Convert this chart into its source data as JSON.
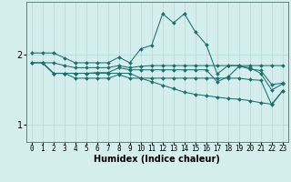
{
  "xlabel": "Humidex (Indice chaleur)",
  "ylabel": "",
  "background_color": "#d4eeed",
  "line_color": "#1a7070",
  "grid_color": "#aed8d5",
  "xlim": [
    -0.5,
    23.5
  ],
  "ylim": [
    0.75,
    2.75
  ],
  "yticks": [
    1,
    2
  ],
  "xticks": [
    0,
    1,
    2,
    3,
    4,
    5,
    6,
    7,
    8,
    9,
    10,
    11,
    12,
    13,
    14,
    15,
    16,
    17,
    18,
    19,
    20,
    21,
    22,
    23
  ],
  "series": [
    {
      "x": [
        0,
        1,
        2,
        3,
        4,
        5,
        6,
        7,
        8,
        9,
        10,
        11,
        12,
        13,
        14,
        15,
        16,
        17,
        18,
        19,
        20,
        21,
        22,
        23
      ],
      "y": [
        2.02,
        2.02,
        2.02,
        1.95,
        1.88,
        1.88,
        1.88,
        1.88,
        1.96,
        1.88,
        2.08,
        2.13,
        2.58,
        2.45,
        2.58,
        2.32,
        2.14,
        1.72,
        1.84,
        1.84,
        1.79,
        1.77,
        1.57,
        1.59
      ]
    },
    {
      "x": [
        0,
        1,
        2,
        3,
        4,
        5,
        6,
        7,
        8,
        9,
        10,
        11,
        12,
        13,
        14,
        15,
        16,
        17,
        18,
        19,
        20,
        21,
        22,
        23
      ],
      "y": [
        1.88,
        1.88,
        1.88,
        1.84,
        1.81,
        1.81,
        1.81,
        1.81,
        1.84,
        1.81,
        1.83,
        1.84,
        1.84,
        1.84,
        1.84,
        1.84,
        1.84,
        1.84,
        1.84,
        1.84,
        1.84,
        1.84,
        1.84,
        1.84
      ]
    },
    {
      "x": [
        0,
        1,
        2,
        3,
        4,
        5,
        6,
        7,
        8,
        9,
        10,
        11,
        12,
        13,
        14,
        15,
        16,
        17,
        18,
        19,
        20,
        21,
        22,
        23
      ],
      "y": [
        1.88,
        1.88,
        1.73,
        1.73,
        1.73,
        1.73,
        1.73,
        1.73,
        1.73,
        1.73,
        1.66,
        1.61,
        1.56,
        1.51,
        1.46,
        1.43,
        1.41,
        1.39,
        1.37,
        1.36,
        1.34,
        1.31,
        1.29,
        1.48
      ]
    },
    {
      "x": [
        1,
        2,
        3,
        4,
        5,
        6,
        7,
        8,
        9,
        10,
        11,
        12,
        13,
        14,
        15,
        16,
        17,
        18,
        19,
        20,
        21,
        22,
        23
      ],
      "y": [
        1.88,
        1.73,
        1.73,
        1.73,
        1.73,
        1.74,
        1.74,
        1.81,
        1.78,
        1.78,
        1.78,
        1.78,
        1.78,
        1.78,
        1.78,
        1.78,
        1.61,
        1.68,
        1.83,
        1.81,
        1.73,
        1.49,
        1.58
      ]
    },
    {
      "x": [
        1,
        2,
        3,
        4,
        5,
        6,
        7,
        8,
        9,
        10,
        11,
        12,
        13,
        14,
        15,
        16,
        17,
        18,
        19,
        20,
        21,
        22,
        23
      ],
      "y": [
        1.88,
        1.73,
        1.73,
        1.66,
        1.66,
        1.66,
        1.66,
        1.71,
        1.66,
        1.66,
        1.66,
        1.66,
        1.66,
        1.66,
        1.66,
        1.66,
        1.66,
        1.66,
        1.66,
        1.64,
        1.63,
        1.28,
        1.48
      ]
    }
  ]
}
